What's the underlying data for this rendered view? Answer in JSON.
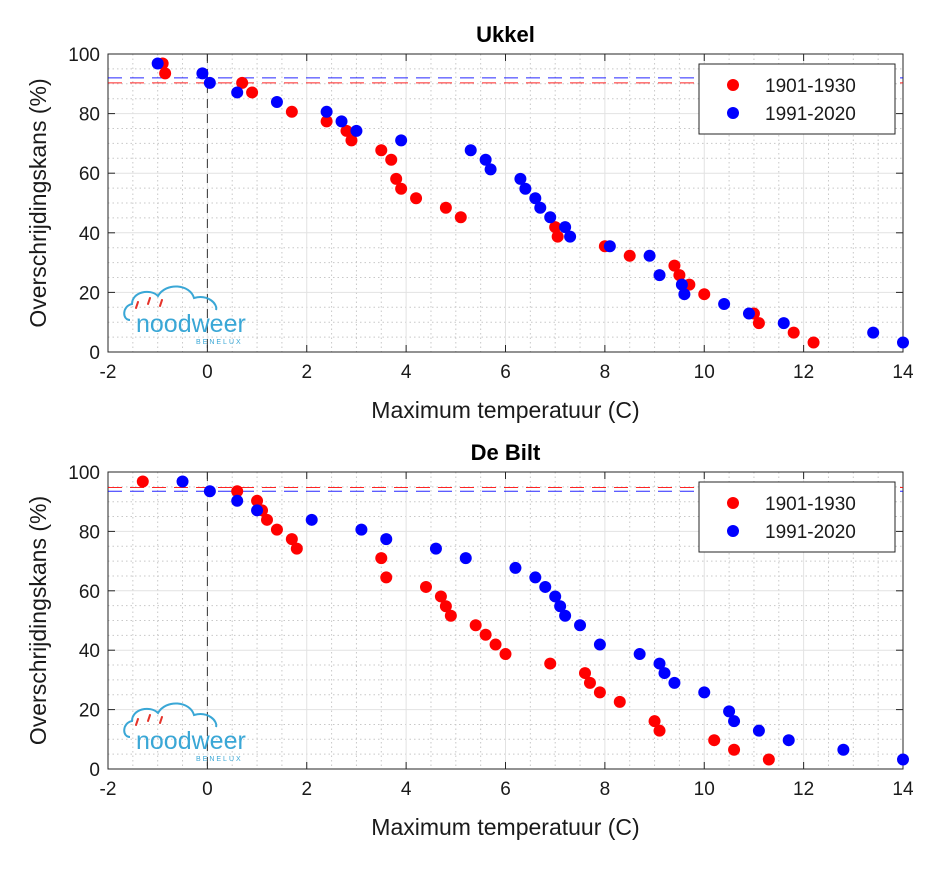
{
  "chart_data": [
    {
      "type": "scatter",
      "title": "Ukkel",
      "xlabel": "Maximum temperatuur (C)",
      "ylabel": "Overschrijdingskans (%)",
      "xlim": [
        -2,
        14
      ],
      "ylim": [
        0,
        100
      ],
      "xticks": [
        "-2",
        "0",
        "2",
        "4",
        "6",
        "8",
        "10",
        "12",
        "14"
      ],
      "yticks": [
        "0",
        "20",
        "40",
        "60",
        "80",
        "100"
      ],
      "grid": "on",
      "minor_grid": "on",
      "legend_position": "top-right",
      "vline_x": 0,
      "hlines": [
        {
          "series": "1991-2020",
          "y": 92
        },
        {
          "series": "1901-1930",
          "y": 90.3
        }
      ],
      "series": [
        {
          "name": "1901-1930",
          "color": "#ff0000",
          "points": [
            [
              -0.9,
              96.8
            ],
            [
              -0.85,
              93.5
            ],
            [
              0.7,
              90.3
            ],
            [
              0.9,
              87.1
            ],
            [
              1.7,
              80.6
            ],
            [
              2.4,
              77.4
            ],
            [
              2.8,
              74.2
            ],
            [
              2.9,
              71.0
            ],
            [
              3.5,
              67.7
            ],
            [
              3.7,
              64.5
            ],
            [
              3.8,
              58.1
            ],
            [
              3.9,
              54.8
            ],
            [
              4.2,
              51.6
            ],
            [
              4.8,
              48.4
            ],
            [
              5.1,
              45.2
            ],
            [
              7.0,
              41.9
            ],
            [
              7.05,
              38.7
            ],
            [
              8.0,
              35.5
            ],
            [
              8.5,
              32.3
            ],
            [
              9.4,
              29.0
            ],
            [
              9.5,
              25.8
            ],
            [
              9.7,
              22.6
            ],
            [
              10.0,
              19.4
            ],
            [
              11.0,
              12.9
            ],
            [
              11.1,
              9.7
            ],
            [
              11.8,
              6.5
            ],
            [
              12.2,
              3.2
            ]
          ]
        },
        {
          "name": "1991-2020",
          "color": "#0000ff",
          "points": [
            [
              -1.0,
              96.8
            ],
            [
              -0.1,
              93.5
            ],
            [
              0.05,
              90.3
            ],
            [
              0.6,
              87.1
            ],
            [
              1.4,
              83.9
            ],
            [
              2.4,
              80.6
            ],
            [
              2.7,
              77.4
            ],
            [
              3.0,
              74.2
            ],
            [
              3.9,
              71.0
            ],
            [
              5.3,
              67.7
            ],
            [
              5.6,
              64.5
            ],
            [
              5.7,
              61.3
            ],
            [
              6.3,
              58.1
            ],
            [
              6.4,
              54.8
            ],
            [
              6.6,
              51.6
            ],
            [
              6.7,
              48.4
            ],
            [
              6.9,
              45.2
            ],
            [
              7.2,
              41.9
            ],
            [
              7.3,
              38.7
            ],
            [
              8.1,
              35.5
            ],
            [
              8.9,
              32.3
            ],
            [
              9.1,
              25.8
            ],
            [
              9.55,
              22.6
            ],
            [
              9.6,
              19.4
            ],
            [
              10.4,
              16.1
            ],
            [
              10.9,
              12.9
            ],
            [
              11.6,
              9.7
            ],
            [
              13.4,
              6.5
            ],
            [
              14.0,
              3.2
            ]
          ]
        }
      ]
    },
    {
      "type": "scatter",
      "title": "De Bilt",
      "xlabel": "Maximum temperatuur (C)",
      "ylabel": "Overschrijdingskans (%)",
      "xlim": [
        -2,
        14
      ],
      "ylim": [
        0,
        100
      ],
      "xticks": [
        "-2",
        "0",
        "2",
        "4",
        "6",
        "8",
        "10",
        "12",
        "14"
      ],
      "yticks": [
        "0",
        "20",
        "40",
        "60",
        "80",
        "100"
      ],
      "grid": "on",
      "minor_grid": "on",
      "legend_position": "top-right",
      "vline_x": 0,
      "hlines": [
        {
          "series": "1901-1930",
          "y": 94.8
        },
        {
          "series": "1991-2020",
          "y": 93.5
        }
      ],
      "series": [
        {
          "name": "1901-1930",
          "color": "#ff0000",
          "points": [
            [
              -1.3,
              96.8
            ],
            [
              0.6,
              93.5
            ],
            [
              1.0,
              90.3
            ],
            [
              1.1,
              87.1
            ],
            [
              1.2,
              83.9
            ],
            [
              1.4,
              80.6
            ],
            [
              1.7,
              77.4
            ],
            [
              1.8,
              74.2
            ],
            [
              3.5,
              71.0
            ],
            [
              3.6,
              64.5
            ],
            [
              4.4,
              61.3
            ],
            [
              4.7,
              58.1
            ],
            [
              4.8,
              54.8
            ],
            [
              4.9,
              51.6
            ],
            [
              5.4,
              48.4
            ],
            [
              5.6,
              45.2
            ],
            [
              5.8,
              41.9
            ],
            [
              6.0,
              38.7
            ],
            [
              6.9,
              35.5
            ],
            [
              7.6,
              32.3
            ],
            [
              7.7,
              29.0
            ],
            [
              7.9,
              25.8
            ],
            [
              8.3,
              22.6
            ],
            [
              9.0,
              16.1
            ],
            [
              9.1,
              12.9
            ],
            [
              10.2,
              9.7
            ],
            [
              10.6,
              6.5
            ],
            [
              11.3,
              3.2
            ]
          ]
        },
        {
          "name": "1991-2020",
          "color": "#0000ff",
          "points": [
            [
              -0.5,
              96.8
            ],
            [
              0.05,
              93.5
            ],
            [
              0.6,
              90.3
            ],
            [
              1.0,
              87.1
            ],
            [
              2.1,
              83.9
            ],
            [
              3.1,
              80.6
            ],
            [
              3.6,
              77.4
            ],
            [
              4.6,
              74.2
            ],
            [
              5.2,
              71.0
            ],
            [
              6.2,
              67.7
            ],
            [
              6.6,
              64.5
            ],
            [
              6.8,
              61.3
            ],
            [
              7.0,
              58.1
            ],
            [
              7.1,
              54.8
            ],
            [
              7.2,
              51.6
            ],
            [
              7.5,
              48.4
            ],
            [
              7.9,
              41.9
            ],
            [
              8.7,
              38.7
            ],
            [
              9.1,
              35.5
            ],
            [
              9.2,
              32.3
            ],
            [
              9.4,
              29.0
            ],
            [
              10.0,
              25.8
            ],
            [
              10.5,
              19.4
            ],
            [
              10.6,
              16.1
            ],
            [
              11.1,
              12.9
            ],
            [
              11.7,
              9.7
            ],
            [
              12.8,
              6.5
            ],
            [
              14.0,
              3.2
            ]
          ]
        }
      ]
    }
  ],
  "watermark": {
    "brand": "noodweer",
    "sub": "BENELUX",
    "color": "#3aa7d6"
  }
}
